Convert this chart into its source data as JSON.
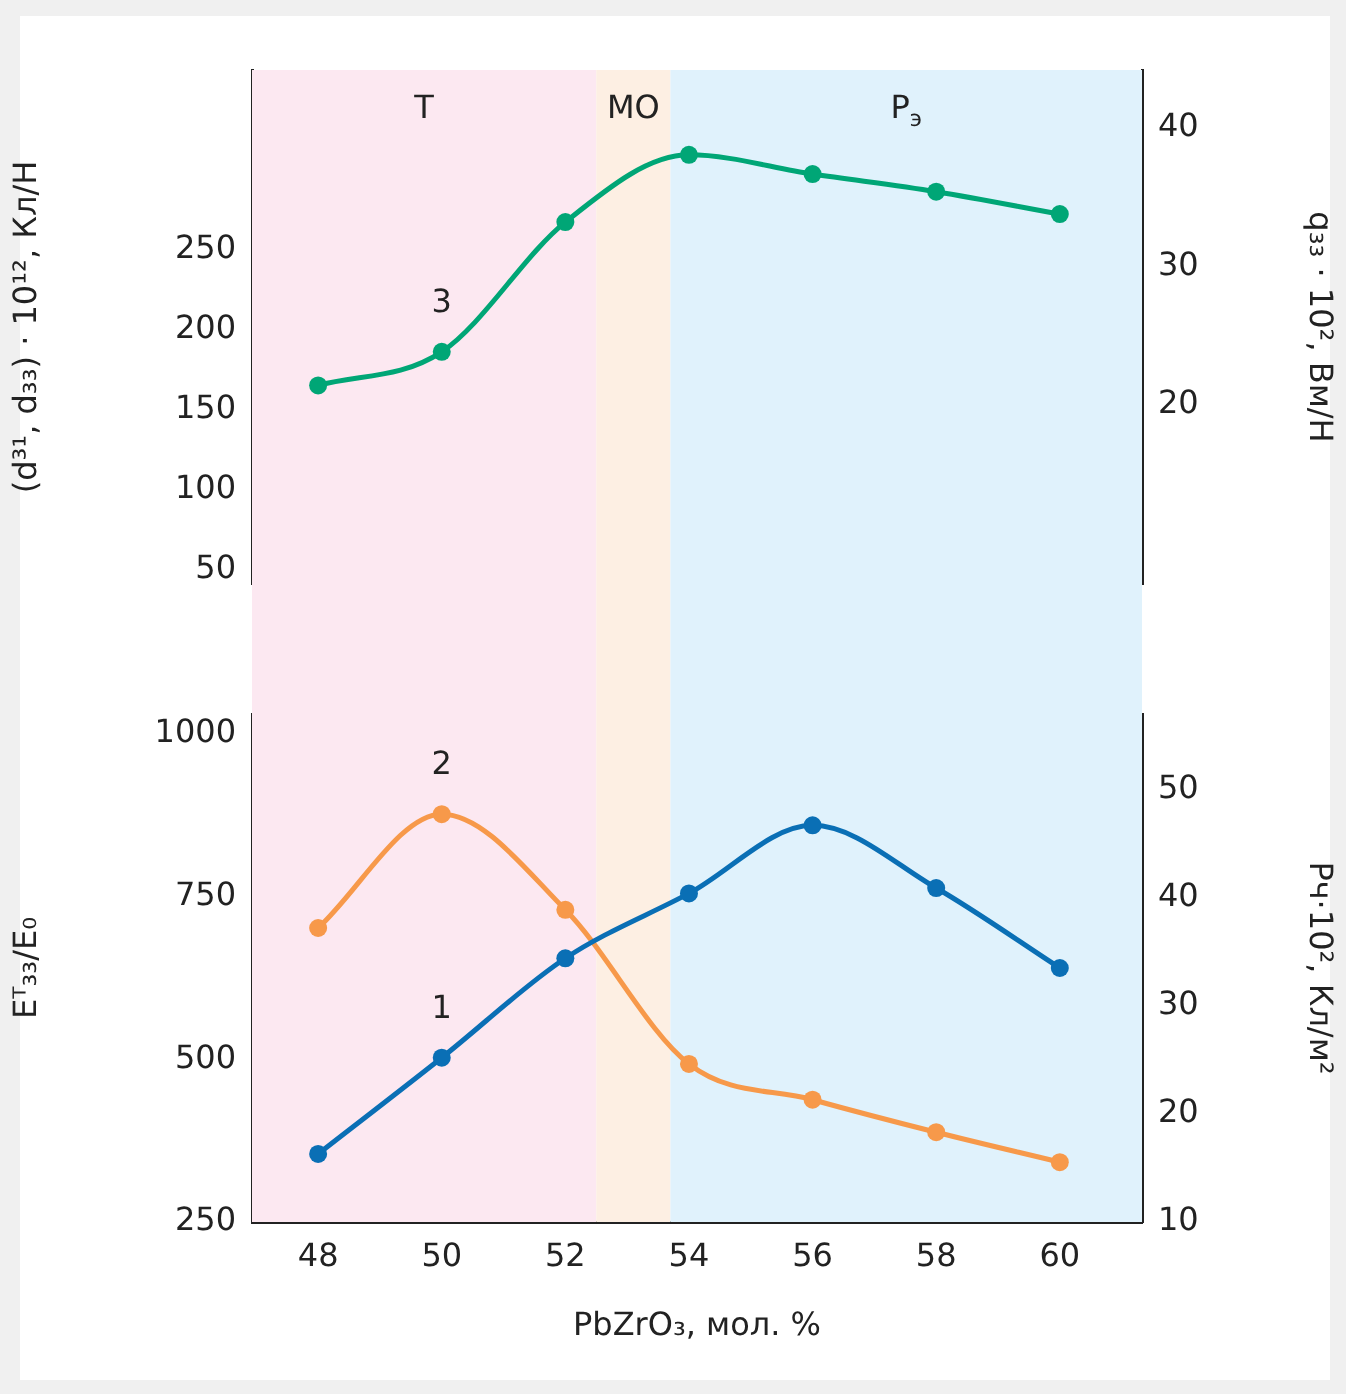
{
  "chart_data": [
    {
      "type": "line",
      "ylabel": "(d³¹, d₃₃) · 10¹², Кл/Н",
      "y2label": "q₃₃ · 10², Вм/Н",
      "x": [
        48,
        50,
        52,
        54,
        56,
        58,
        60
      ],
      "series": [
        {
          "name": "3",
          "color": "#00a676",
          "values": [
            165,
            186,
            267,
            309,
            297,
            286,
            272
          ]
        }
      ],
      "xlim": [
        46.93,
        61.33
      ],
      "xticks": [
        48,
        50,
        52,
        54,
        56,
        58,
        60
      ],
      "ylim": [
        41,
        362
      ],
      "yticks": [
        50,
        100,
        150,
        200,
        250
      ],
      "y2lim": [
        7,
        44.2
      ],
      "y2ticks": [
        20,
        30,
        40
      ],
      "tick_labels": "y",
      "marker": "circle",
      "grid": false,
      "legend": false,
      "bands": [
        {
          "axis": "x",
          "from": 46.93,
          "to": 52.5,
          "label": "Т",
          "color": "#fce8f1"
        },
        {
          "axis": "x",
          "from": 52.5,
          "to": 53.7,
          "label": "МО",
          "color": "#fdefe3"
        },
        {
          "axis": "x",
          "from": 53.7,
          "to": 61.33,
          "label": "Р$_{э}$",
          "color": "#e0f2fc"
        }
      ]
    },
    {
      "type": "line",
      "xlabel": "PbZrO₃, мол. %",
      "ylabel": "Eᵀ₃₃/E₀",
      "y2label": "Рч·10², Кл/м²",
      "x": [
        48,
        50,
        52,
        54,
        56,
        58,
        60
      ],
      "series": [
        {
          "name": "1",
          "color": "#0a6fb5",
          "axis": "y2",
          "values": [
            16.3,
            25.2,
            34.4,
            40.4,
            46.7,
            40.9,
            33.5
          ]
        },
        {
          "name": "2",
          "color": "#f7994a",
          "values": [
            702,
            877,
            730,
            493,
            438,
            388,
            342
          ]
        }
      ],
      "xlim": [
        46.93,
        61.33
      ],
      "xticks": [
        48,
        50,
        52,
        54,
        56,
        58,
        60
      ],
      "ylim": [
        250,
        1031
      ],
      "yticks": [
        250,
        500,
        750,
        1000
      ],
      "y2lim": [
        10,
        57
      ],
      "y2ticks": [
        10,
        20,
        30,
        40,
        50
      ],
      "marker": "circle",
      "grid": false,
      "legend": false,
      "bands": [
        {
          "axis": "x",
          "from": 46.93,
          "to": 52.5,
          "color": "#fce8f1"
        },
        {
          "axis": "x",
          "from": 52.5,
          "to": 53.7,
          "color": "#fdefe3"
        },
        {
          "axis": "x",
          "from": 53.7,
          "to": 61.33,
          "color": "#e0f2fc"
        }
      ]
    }
  ]
}
